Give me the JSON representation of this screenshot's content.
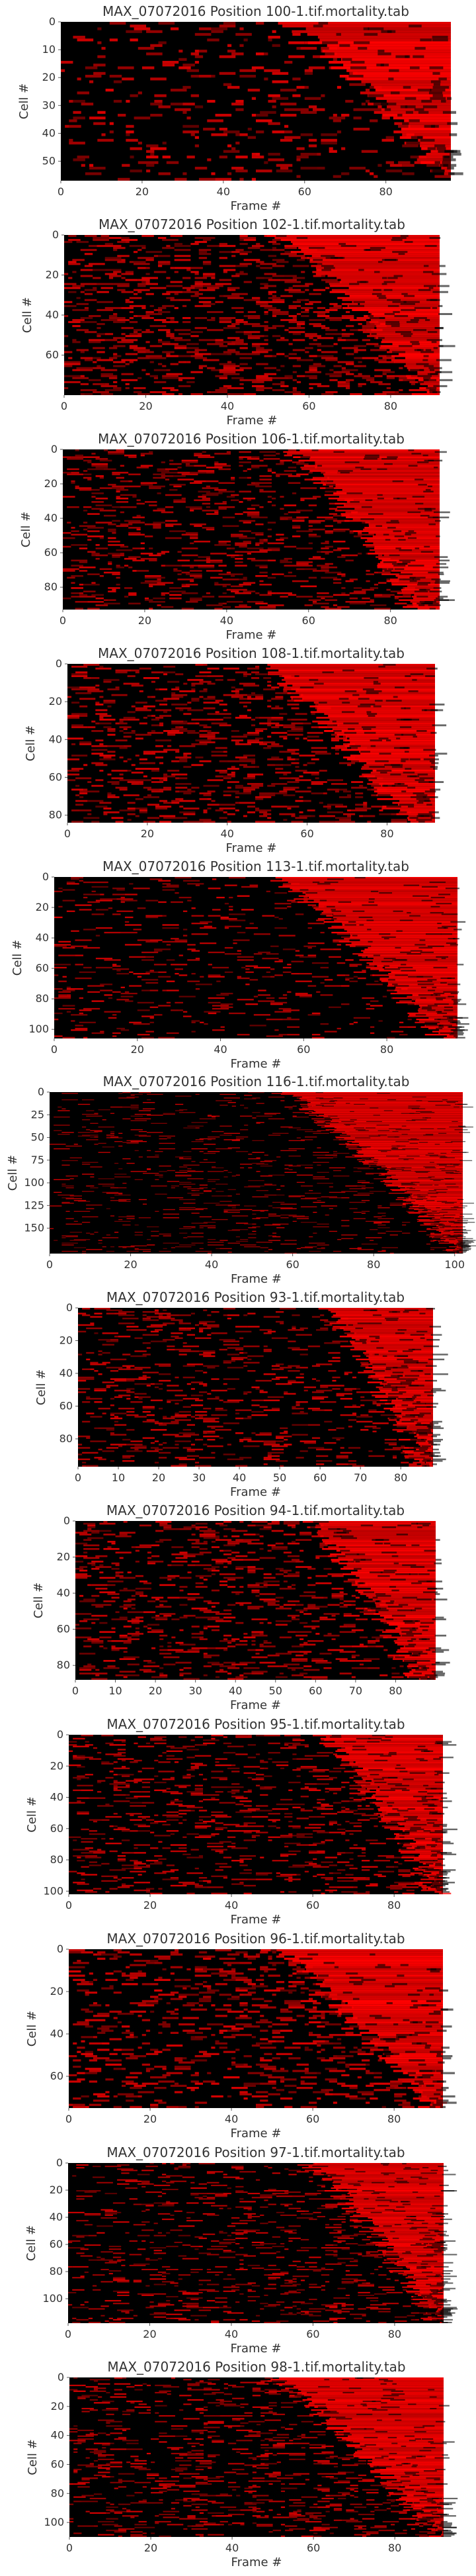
{
  "colors": {
    "background": "#000000",
    "signal": "#ff0000",
    "text": "#333333",
    "tick": "#555555"
  },
  "colormap": "black-to-red",
  "chart_data": [
    {
      "type": "heatmap",
      "title": "MAX_07072016 Position 100-1.tif.mortality.tab",
      "xlabel": "Frame #",
      "ylabel": "Cell #",
      "x_ticks": [
        0,
        20,
        40,
        60,
        80
      ],
      "y_ticks": [
        0,
        10,
        20,
        30,
        40,
        50
      ],
      "xlim": [
        0,
        96
      ],
      "ylim": [
        0,
        57
      ],
      "rows": 57,
      "cols": 96,
      "onset": {
        "start": 55,
        "end": 94
      },
      "noise": 0.07
    },
    {
      "type": "heatmap",
      "title": "MAX_07072016 Position 102-1.tif.mortality.tab",
      "xlabel": "Frame #",
      "ylabel": "Cell #",
      "x_ticks": [
        0,
        20,
        40,
        60,
        80
      ],
      "y_ticks": [
        0,
        20,
        40,
        60
      ],
      "xlim": [
        0,
        92
      ],
      "ylim": [
        0,
        80
      ],
      "rows": 80,
      "cols": 92,
      "onset": {
        "start": 52,
        "end": 88
      },
      "noise": 0.16
    },
    {
      "type": "heatmap",
      "title": "MAX_07072016 Position 106-1.tif.mortality.tab",
      "xlabel": "Frame #",
      "ylabel": "Cell #",
      "x_ticks": [
        0,
        20,
        40,
        60,
        80
      ],
      "y_ticks": [
        0,
        20,
        40,
        60,
        80
      ],
      "xlim": [
        0,
        92
      ],
      "ylim": [
        0,
        93
      ],
      "rows": 93,
      "cols": 92,
      "onset": {
        "start": 55,
        "end": 86
      },
      "noise": 0.12
    },
    {
      "type": "heatmap",
      "title": "MAX_07072016 Position 108-1.tif.mortality.tab",
      "xlabel": "Frame #",
      "ylabel": "Cell #",
      "x_ticks": [
        0,
        20,
        40,
        60,
        80
      ],
      "y_ticks": [
        0,
        20,
        40,
        60,
        80
      ],
      "xlim": [
        0,
        92
      ],
      "ylim": [
        0,
        84
      ],
      "rows": 84,
      "cols": 92,
      "onset": {
        "start": 48,
        "end": 84
      },
      "noise": 0.14
    },
    {
      "type": "heatmap",
      "title": "MAX_07072016 Position 113-1.tif.mortality.tab",
      "xlabel": "Frame #",
      "ylabel": "Cell #",
      "x_ticks": [
        0,
        20,
        40,
        60,
        80
      ],
      "y_ticks": [
        0,
        20,
        40,
        60,
        80,
        100
      ],
      "xlim": [
        0,
        97
      ],
      "ylim": [
        0,
        106
      ],
      "rows": 106,
      "cols": 97,
      "onset": {
        "start": 52,
        "end": 92
      },
      "noise": 0.06
    },
    {
      "type": "heatmap",
      "title": "MAX_07072016 Position 116-1.tif.mortality.tab",
      "xlabel": "Frame #",
      "ylabel": "Cell #",
      "x_ticks": [
        0,
        20,
        40,
        60,
        80,
        100
      ],
      "y_ticks": [
        0,
        25,
        50,
        75,
        100,
        125,
        150
      ],
      "xlim": [
        0,
        102
      ],
      "ylim": [
        0,
        178
      ],
      "rows": 178,
      "cols": 102,
      "onset": {
        "start": 57,
        "end": 100
      },
      "noise": 0.05
    },
    {
      "type": "heatmap",
      "title": "MAX_07072016 Position 93-1.tif.mortality.tab",
      "xlabel": "Frame #",
      "ylabel": "Cell #",
      "x_ticks": [
        0,
        10,
        20,
        30,
        40,
        50,
        60,
        70,
        80
      ],
      "y_ticks": [
        0,
        20,
        40,
        60,
        80
      ],
      "xlim": [
        0,
        88
      ],
      "ylim": [
        0,
        97
      ],
      "rows": 97,
      "cols": 88,
      "onset": {
        "start": 60,
        "end": 85
      },
      "noise": 0.09
    },
    {
      "type": "heatmap",
      "title": "MAX_07072016 Position 94-1.tif.mortality.tab",
      "xlabel": "Frame #",
      "ylabel": "Cell #",
      "x_ticks": [
        0,
        10,
        20,
        30,
        40,
        50,
        60,
        70,
        80
      ],
      "y_ticks": [
        0,
        20,
        40,
        60,
        80
      ],
      "xlim": [
        0,
        90
      ],
      "ylim": [
        0,
        88
      ],
      "rows": 88,
      "cols": 90,
      "onset": {
        "start": 58,
        "end": 85
      },
      "noise": 0.11
    },
    {
      "type": "heatmap",
      "title": "MAX_07072016 Position 95-1.tif.mortality.tab",
      "xlabel": "Frame #",
      "ylabel": "Cell #",
      "x_ticks": [
        0,
        20,
        40,
        60,
        80
      ],
      "y_ticks": [
        0,
        20,
        40,
        60,
        80,
        100
      ],
      "xlim": [
        0,
        92
      ],
      "ylim": [
        0,
        102
      ],
      "rows": 102,
      "cols": 92,
      "onset": {
        "start": 62,
        "end": 90
      },
      "noise": 0.1
    },
    {
      "type": "heatmap",
      "title": "MAX_07072016 Position 96-1.tif.mortality.tab",
      "xlabel": "Frame #",
      "ylabel": "Cell #",
      "x_ticks": [
        0,
        20,
        40,
        60,
        80
      ],
      "y_ticks": [
        0,
        20,
        40,
        60
      ],
      "xlim": [
        0,
        92
      ],
      "ylim": [
        0,
        75
      ],
      "rows": 75,
      "cols": 92,
      "onset": {
        "start": 50,
        "end": 88
      },
      "noise": 0.13
    },
    {
      "type": "heatmap",
      "title": "MAX_07072016 Position 97-1.tif.mortality.tab",
      "xlabel": "Frame #",
      "ylabel": "Cell #",
      "x_ticks": [
        0,
        20,
        40,
        60,
        80
      ],
      "y_ticks": [
        0,
        20,
        40,
        60,
        80,
        100
      ],
      "xlim": [
        0,
        92
      ],
      "ylim": [
        0,
        118
      ],
      "rows": 118,
      "cols": 92,
      "onset": {
        "start": 58,
        "end": 90
      },
      "noise": 0.08
    },
    {
      "type": "heatmap",
      "title": "MAX_07072016 Position 98-1.tif.mortality.tab",
      "xlabel": "Frame #",
      "ylabel": "Cell #",
      "x_ticks": [
        0,
        20,
        40,
        60,
        80
      ],
      "y_ticks": [
        0,
        20,
        40,
        60,
        80,
        100
      ],
      "xlim": [
        0,
        92
      ],
      "ylim": [
        0,
        110
      ],
      "rows": 110,
      "cols": 92,
      "onset": {
        "start": 50,
        "end": 90
      },
      "noise": 0.1
    }
  ]
}
